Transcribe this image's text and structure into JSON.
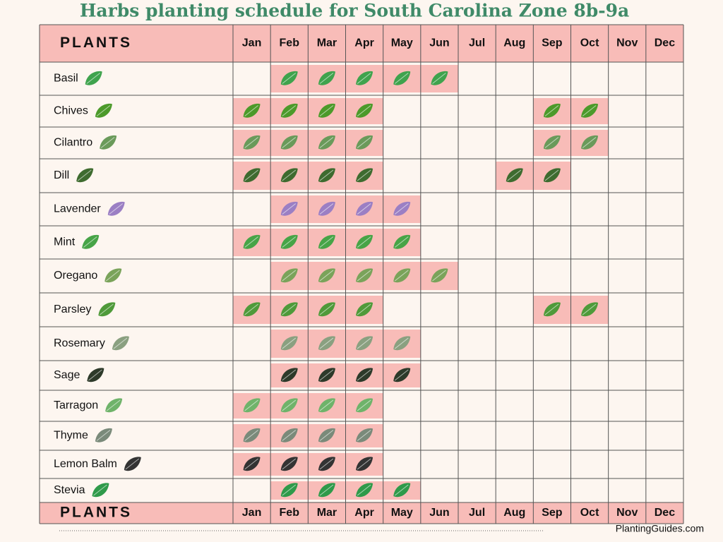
{
  "title": "Harbs planting schedule for South Carolina Zone 8b-9a",
  "header": {
    "label": "PLANTS",
    "months": [
      "Jan",
      "Feb",
      "Mar",
      "Apr",
      "May",
      "Jun",
      "Jul",
      "Aug",
      "Sep",
      "Oct",
      "Nov",
      "Dec"
    ]
  },
  "rows": [
    {
      "name": "Basil",
      "months": [
        false,
        true,
        true,
        true,
        true,
        true,
        false,
        false,
        false,
        false,
        false,
        false
      ]
    },
    {
      "name": "Chives",
      "months": [
        true,
        true,
        true,
        true,
        false,
        false,
        false,
        false,
        true,
        true,
        false,
        false
      ]
    },
    {
      "name": "Cilantro",
      "months": [
        true,
        true,
        true,
        true,
        false,
        false,
        false,
        false,
        true,
        true,
        false,
        false
      ]
    },
    {
      "name": "Dill",
      "months": [
        true,
        true,
        true,
        true,
        false,
        false,
        false,
        true,
        true,
        false,
        false,
        false
      ]
    },
    {
      "name": "Lavender",
      "months": [
        false,
        true,
        true,
        true,
        true,
        false,
        false,
        false,
        false,
        false,
        false,
        false
      ]
    },
    {
      "name": "Mint",
      "months": [
        true,
        true,
        true,
        true,
        true,
        false,
        false,
        false,
        false,
        false,
        false,
        false
      ]
    },
    {
      "name": "Oregano",
      "months": [
        false,
        true,
        true,
        true,
        true,
        true,
        false,
        false,
        false,
        false,
        false,
        false
      ]
    },
    {
      "name": "Parsley",
      "months": [
        true,
        true,
        true,
        true,
        false,
        false,
        false,
        false,
        true,
        true,
        false,
        false
      ]
    },
    {
      "name": "Rosemary",
      "months": [
        false,
        true,
        true,
        true,
        true,
        false,
        false,
        false,
        false,
        false,
        false,
        false
      ]
    },
    {
      "name": "Sage",
      "months": [
        false,
        true,
        true,
        true,
        true,
        false,
        false,
        false,
        false,
        false,
        false,
        false
      ]
    },
    {
      "name": "Tarragon",
      "months": [
        true,
        true,
        true,
        true,
        false,
        false,
        false,
        false,
        false,
        false,
        false,
        false
      ]
    },
    {
      "name": "Thyme",
      "months": [
        true,
        true,
        true,
        true,
        false,
        false,
        false,
        false,
        false,
        false,
        false,
        false
      ]
    },
    {
      "name": "Lemon Balm",
      "months": [
        true,
        true,
        true,
        true,
        false,
        false,
        false,
        false,
        false,
        false,
        false,
        false
      ]
    },
    {
      "name": "Stevia",
      "months": [
        false,
        true,
        true,
        true,
        true,
        false,
        false,
        false,
        false,
        false,
        false,
        false
      ]
    }
  ],
  "footer": {
    "label": "PLANTS",
    "months": [
      "Jan",
      "Feb",
      "Mar",
      "Apr",
      "May",
      "Jun",
      "Jul",
      "Aug",
      "Sep",
      "Oct",
      "Nov",
      "Dec"
    ]
  },
  "credit": "PlantingGuides.com"
}
